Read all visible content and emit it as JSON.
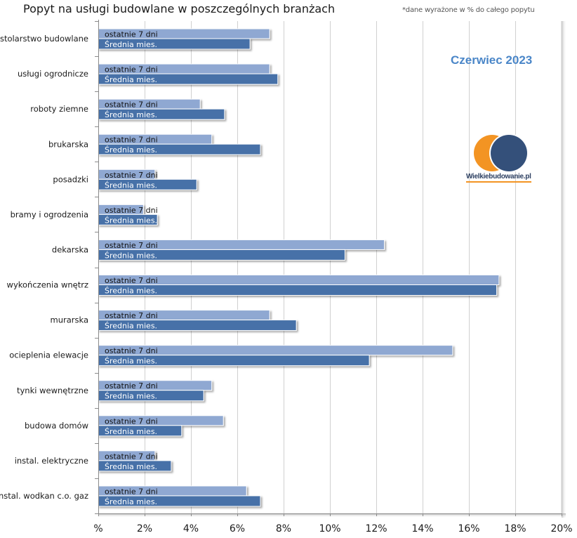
{
  "chart_data": {
    "type": "bar",
    "orientation": "horizontal",
    "title": "Popyt na usługi budowlane w poszczególnych branżach",
    "note": "*dane wyrażone w % do całego popytu",
    "period": "Czerwiec 2023",
    "logo_text": "Wielkiebudowanie.pl",
    "xlabel": "",
    "ylabel": "",
    "xlim": [
      0,
      20
    ],
    "x_ticks": [
      "%",
      "2%",
      "4%",
      "6%",
      "8%",
      "10%",
      "12%",
      "14%",
      "16%",
      "18%",
      "20%"
    ],
    "x_tick_values": [
      0,
      2,
      4,
      6,
      8,
      10,
      12,
      14,
      16,
      18,
      20
    ],
    "grid": true,
    "categories": [
      "stolarstwo  budowlane",
      "usługi ogrodnicze",
      "roboty ziemne",
      "brukarska",
      "posadzki",
      "bramy  i ogrodzenia",
      "dekarska",
      "wykończenia wnętrz",
      "murarska",
      "ocieplenia elewacje",
      "tynki wewnętrzne",
      "budowa domów",
      "instal. elektryczne",
      "instal. wodkan c.o. gaz"
    ],
    "series": [
      {
        "name": "ostatnie 7 dni",
        "color": "#8fa8d2",
        "values": [
          7.4,
          7.4,
          4.4,
          4.9,
          2.45,
          1.95,
          12.35,
          17.3,
          7.4,
          15.3,
          4.9,
          5.4,
          2.45,
          6.4
        ]
      },
      {
        "name": "Średnia mies.",
        "color": "#4671a8",
        "values": [
          6.55,
          7.75,
          5.45,
          7.0,
          4.25,
          2.55,
          10.65,
          17.2,
          8.55,
          11.7,
          4.55,
          3.6,
          3.15,
          7.0
        ]
      }
    ],
    "colors": {
      "period_text": "#4a86c8",
      "logo_orange": "#f39423",
      "logo_navy": "#34507a",
      "gridline": "#d0d0d0"
    }
  }
}
